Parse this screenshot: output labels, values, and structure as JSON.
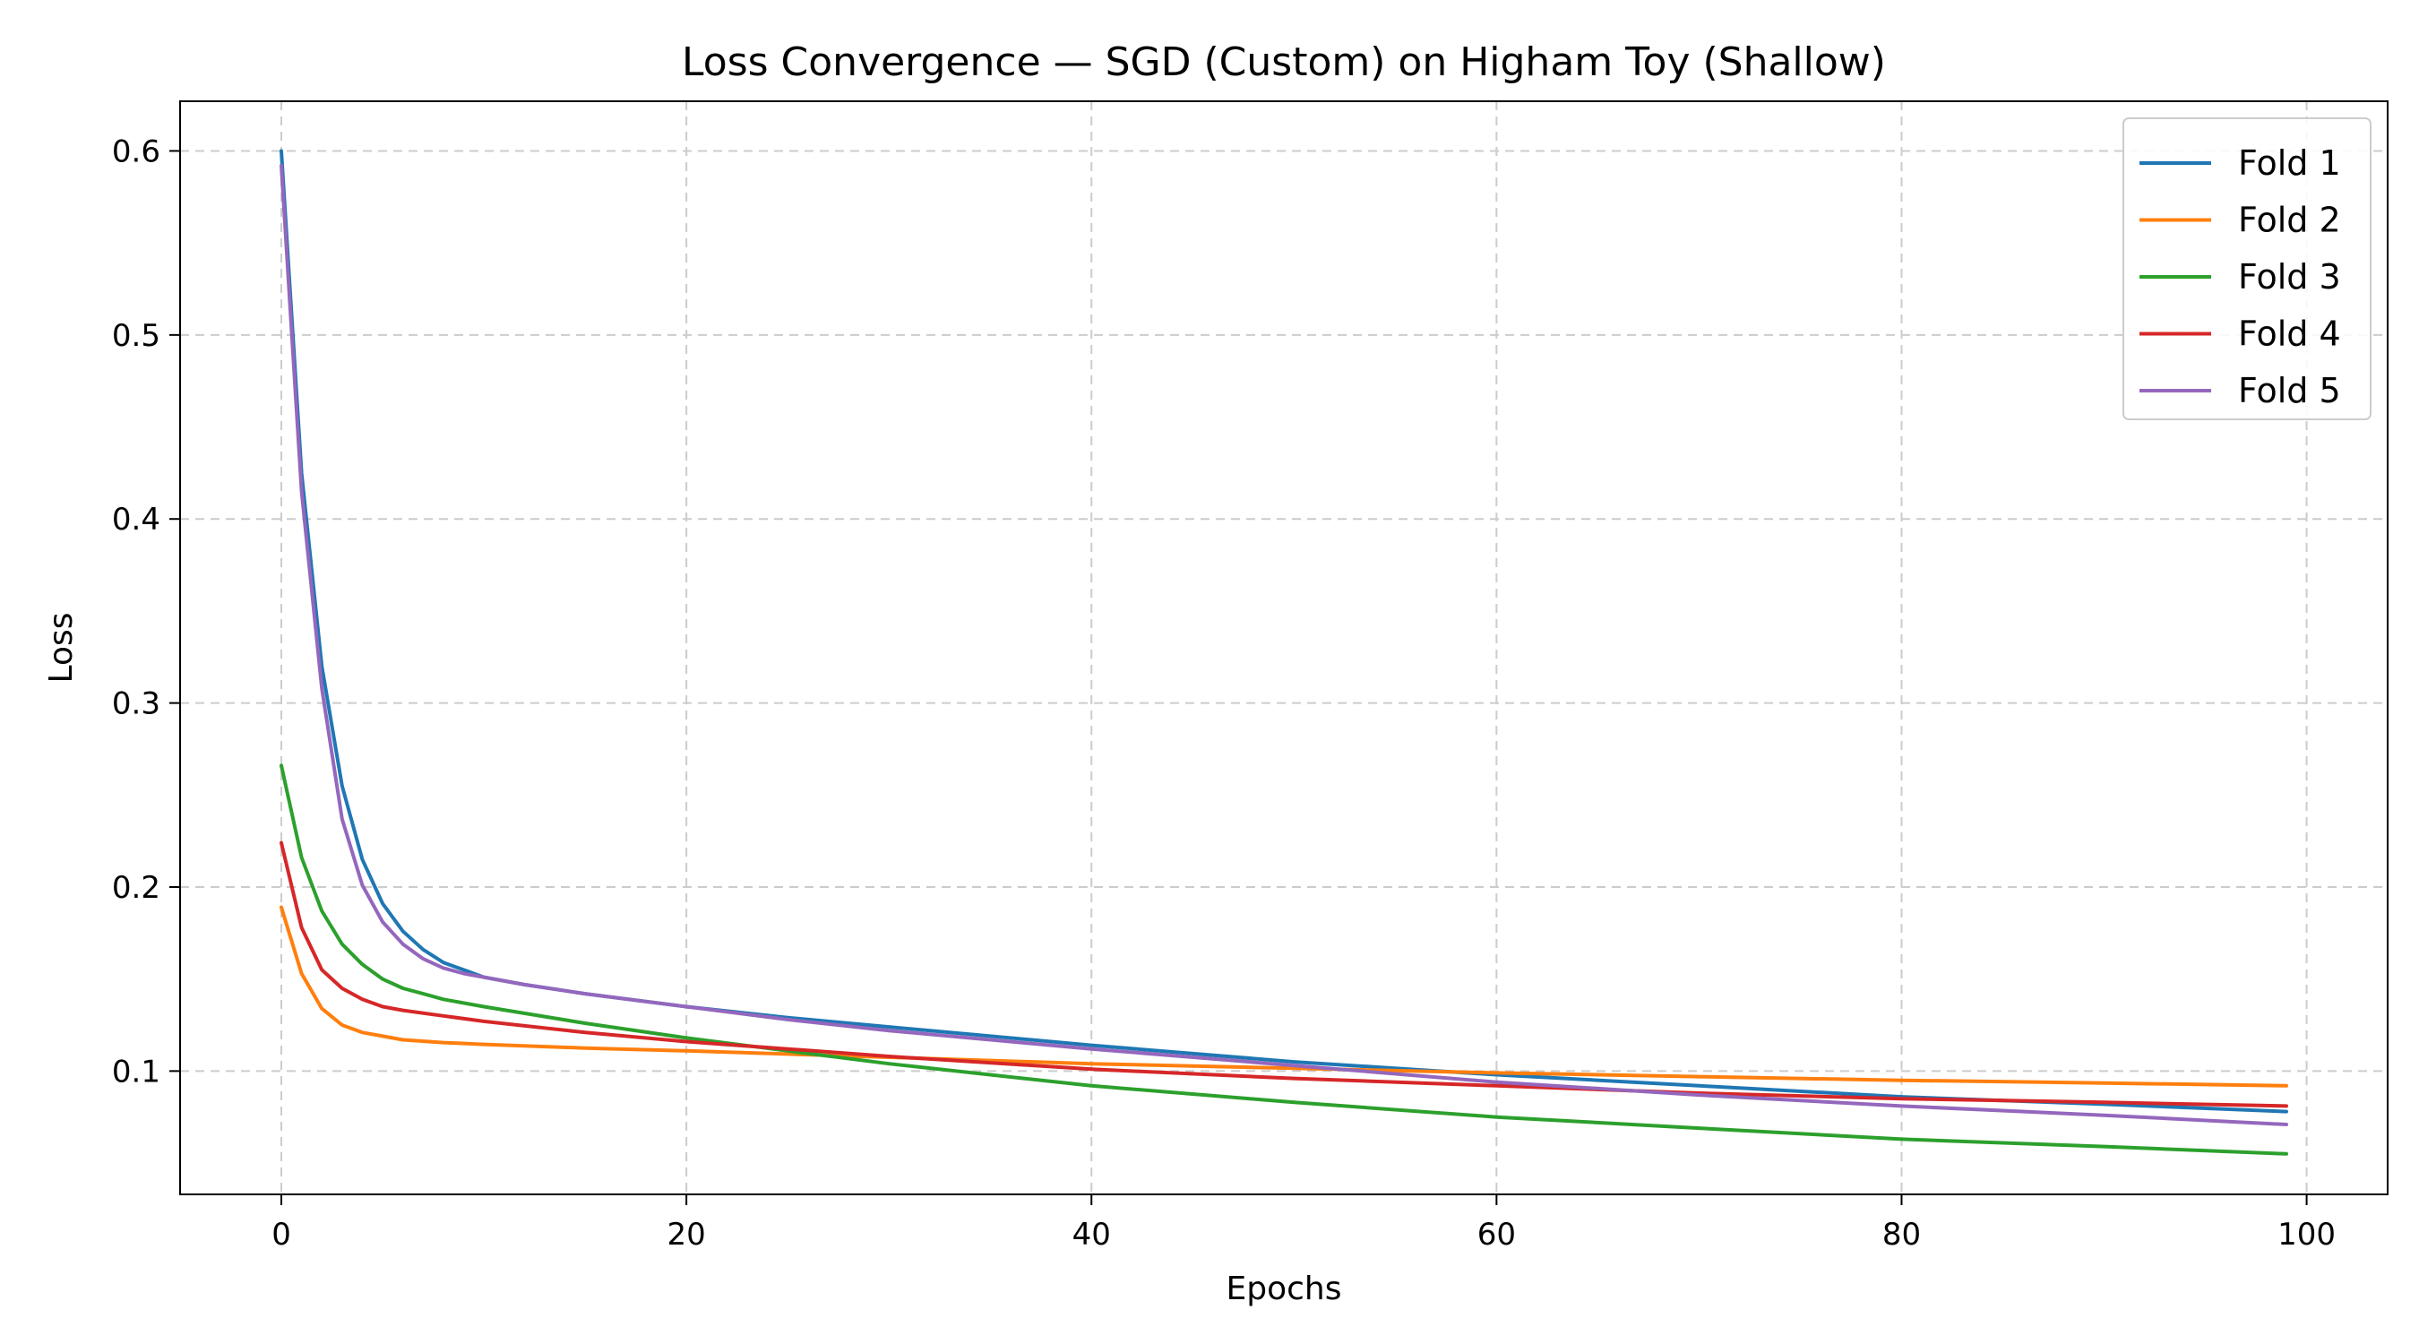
{
  "chart_data": {
    "type": "line",
    "title": "Loss Convergence — SGD (Custom) on Higham Toy (Shallow)",
    "xlabel": "Epochs",
    "ylabel": "Loss",
    "xlim": [
      -5,
      104
    ],
    "ylim": [
      0.033,
      0.627
    ],
    "xticks": [
      0,
      20,
      40,
      60,
      80,
      100
    ],
    "yticks": [
      0.1,
      0.2,
      0.3,
      0.4,
      0.5,
      0.6
    ],
    "xtick_labels": [
      "0",
      "20",
      "40",
      "60",
      "80",
      "100"
    ],
    "ytick_labels": [
      "0.1",
      "0.2",
      "0.3",
      "0.4",
      "0.5",
      "0.6"
    ],
    "grid": true,
    "legend_position": "top-right",
    "series": [
      {
        "name": "Fold 1",
        "color": "#1f77b4",
        "points": [
          [
            0,
            0.6
          ],
          [
            1,
            0.425
          ],
          [
            2,
            0.32
          ],
          [
            3,
            0.255
          ],
          [
            4,
            0.215
          ],
          [
            5,
            0.191
          ],
          [
            6,
            0.176
          ],
          [
            7,
            0.166
          ],
          [
            8,
            0.159
          ],
          [
            9,
            0.155
          ],
          [
            10,
            0.151
          ],
          [
            12,
            0.147
          ],
          [
            15,
            0.142
          ],
          [
            20,
            0.135
          ],
          [
            25,
            0.129
          ],
          [
            30,
            0.124
          ],
          [
            40,
            0.114
          ],
          [
            50,
            0.105
          ],
          [
            60,
            0.098
          ],
          [
            70,
            0.092
          ],
          [
            80,
            0.086
          ],
          [
            90,
            0.082
          ],
          [
            99,
            0.078
          ]
        ]
      },
      {
        "name": "Fold 2",
        "color": "#ff7f0e",
        "points": [
          [
            0,
            0.189
          ],
          [
            1,
            0.153
          ],
          [
            2,
            0.134
          ],
          [
            3,
            0.125
          ],
          [
            4,
            0.121
          ],
          [
            5,
            0.119
          ],
          [
            6,
            0.117
          ],
          [
            8,
            0.1155
          ],
          [
            10,
            0.1145
          ],
          [
            15,
            0.1125
          ],
          [
            20,
            0.111
          ],
          [
            30,
            0.1075
          ],
          [
            40,
            0.104
          ],
          [
            50,
            0.1015
          ],
          [
            60,
            0.099
          ],
          [
            70,
            0.097
          ],
          [
            80,
            0.095
          ],
          [
            90,
            0.0935
          ],
          [
            99,
            0.092
          ]
        ]
      },
      {
        "name": "Fold 3",
        "color": "#2ca02c",
        "points": [
          [
            0,
            0.266
          ],
          [
            1,
            0.216
          ],
          [
            2,
            0.187
          ],
          [
            3,
            0.169
          ],
          [
            4,
            0.158
          ],
          [
            5,
            0.15
          ],
          [
            6,
            0.145
          ],
          [
            7,
            0.142
          ],
          [
            8,
            0.139
          ],
          [
            10,
            0.135
          ],
          [
            15,
            0.126
          ],
          [
            20,
            0.118
          ],
          [
            25,
            0.111
          ],
          [
            30,
            0.104
          ],
          [
            40,
            0.092
          ],
          [
            50,
            0.083
          ],
          [
            60,
            0.075
          ],
          [
            70,
            0.069
          ],
          [
            80,
            0.063
          ],
          [
            90,
            0.059
          ],
          [
            99,
            0.055
          ]
        ]
      },
      {
        "name": "Fold 4",
        "color": "#d62728",
        "points": [
          [
            0,
            0.224
          ],
          [
            1,
            0.178
          ],
          [
            2,
            0.155
          ],
          [
            3,
            0.145
          ],
          [
            4,
            0.139
          ],
          [
            5,
            0.135
          ],
          [
            6,
            0.133
          ],
          [
            8,
            0.13
          ],
          [
            10,
            0.127
          ],
          [
            15,
            0.121
          ],
          [
            20,
            0.116
          ],
          [
            25,
            0.112
          ],
          [
            30,
            0.108
          ],
          [
            40,
            0.101
          ],
          [
            50,
            0.096
          ],
          [
            60,
            0.092
          ],
          [
            70,
            0.088
          ],
          [
            80,
            0.085
          ],
          [
            90,
            0.083
          ],
          [
            99,
            0.081
          ]
        ]
      },
      {
        "name": "Fold 5",
        "color": "#9467bd",
        "points": [
          [
            0,
            0.592
          ],
          [
            1,
            0.415
          ],
          [
            2,
            0.308
          ],
          [
            3,
            0.237
          ],
          [
            4,
            0.201
          ],
          [
            5,
            0.181
          ],
          [
            6,
            0.169
          ],
          [
            7,
            0.161
          ],
          [
            8,
            0.156
          ],
          [
            9,
            0.153
          ],
          [
            10,
            0.151
          ],
          [
            12,
            0.147
          ],
          [
            15,
            0.142
          ],
          [
            20,
            0.135
          ],
          [
            25,
            0.128
          ],
          [
            30,
            0.122
          ],
          [
            40,
            0.112
          ],
          [
            50,
            0.103
          ],
          [
            60,
            0.094
          ],
          [
            70,
            0.087
          ],
          [
            80,
            0.081
          ],
          [
            90,
            0.076
          ],
          [
            99,
            0.071
          ]
        ]
      }
    ]
  }
}
